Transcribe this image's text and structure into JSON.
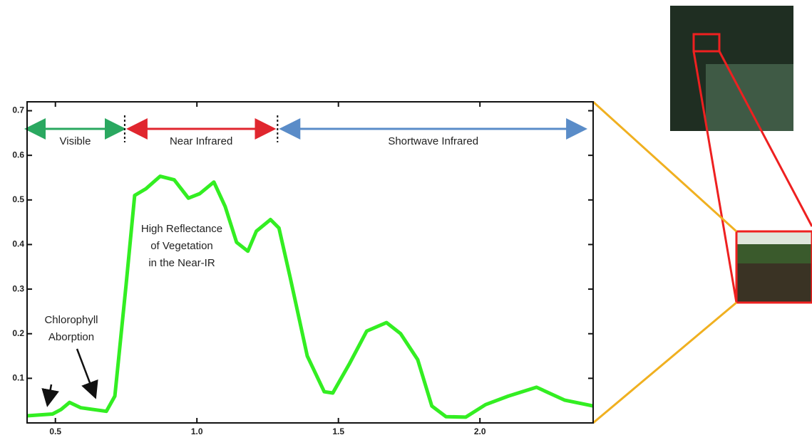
{
  "chart_data": {
    "type": "line",
    "x": [
      0.4,
      0.49,
      0.52,
      0.55,
      0.59,
      0.68,
      0.71,
      0.75,
      0.78,
      0.82,
      0.87,
      0.92,
      0.97,
      1.01,
      1.06,
      1.1,
      1.14,
      1.18,
      1.21,
      1.26,
      1.29,
      1.33,
      1.39,
      1.45,
      1.48,
      1.54,
      1.6,
      1.67,
      1.72,
      1.78,
      1.83,
      1.88,
      1.95,
      2.02,
      2.1,
      2.2,
      2.3,
      2.4
    ],
    "values": [
      0.016,
      0.02,
      0.03,
      0.046,
      0.034,
      0.026,
      0.06,
      0.31,
      0.51,
      0.525,
      0.553,
      0.545,
      0.504,
      0.514,
      0.54,
      0.485,
      0.405,
      0.385,
      0.43,
      0.456,
      0.437,
      0.325,
      0.15,
      0.07,
      0.067,
      0.134,
      0.206,
      0.225,
      0.2,
      0.142,
      0.038,
      0.014,
      0.013,
      0.041,
      0.06,
      0.08,
      0.051,
      0.038
    ],
    "color": "#33ee22",
    "xlim": [
      0.4,
      2.4
    ],
    "ylim": [
      0,
      0.72
    ],
    "xticks": [
      0.5,
      {
        "value": 1.0,
        "label": "1.0"
      },
      1.5,
      {
        "value": 2.0,
        "label": "2.0"
      }
    ],
    "yticks": [
      0.1,
      0.2,
      0.3,
      0.4,
      0.5,
      0.6,
      0.7
    ],
    "regions": [
      {
        "label": "Visible",
        "start": 0.4,
        "end": 0.74,
        "color": "#2aa860"
      },
      {
        "label": "Near Infrared",
        "start": 0.76,
        "end": 1.27,
        "color": "#e0262e"
      },
      {
        "label": "Shortwave Infrared",
        "start": 1.3,
        "end": 2.37,
        "color": "#5a8cc8"
      }
    ],
    "annotations": [
      {
        "lines": [
          "High Reflectance",
          "of Vegetation",
          "in the Near-IR"
        ]
      },
      {
        "lines": [
          "Chlorophyll",
          "Aborption"
        ]
      }
    ]
  }
}
